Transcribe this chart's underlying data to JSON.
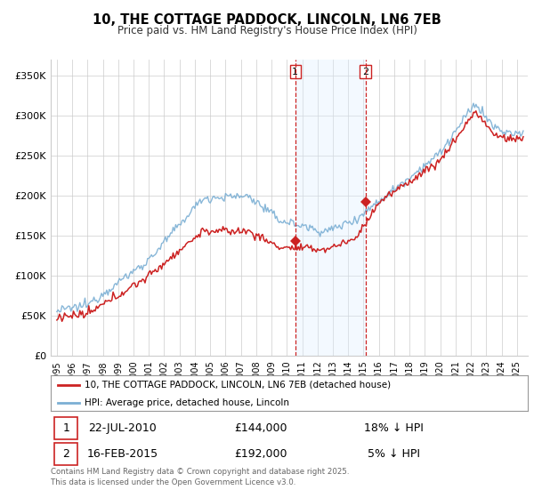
{
  "title": "10, THE COTTAGE PADDOCK, LINCOLN, LN6 7EB",
  "subtitle": "Price paid vs. HM Land Registry's House Price Index (HPI)",
  "ylim": [
    0,
    370000
  ],
  "yticks": [
    0,
    50000,
    100000,
    150000,
    200000,
    250000,
    300000,
    350000
  ],
  "ytick_labels": [
    "£0",
    "£50K",
    "£100K",
    "£150K",
    "£200K",
    "£250K",
    "£300K",
    "£350K"
  ],
  "xlim_start": 1994.6,
  "xlim_end": 2025.7,
  "hpi_color": "#7bafd4",
  "price_color": "#cc2222",
  "marker1_date": 2010.55,
  "marker2_date": 2015.12,
  "marker1_price": 144000,
  "marker2_price": 192000,
  "vline_color": "#cc2222",
  "shade_color": "#ddeeff",
  "legend_label1": "10, THE COTTAGE PADDOCK, LINCOLN, LN6 7EB (detached house)",
  "legend_label2": "HPI: Average price, detached house, Lincoln",
  "annotation1_date": "22-JUL-2010",
  "annotation1_price": "£144,000",
  "annotation1_hpi": "18% ↓ HPI",
  "annotation2_date": "16-FEB-2015",
  "annotation2_price": "£192,000",
  "annotation2_hpi": "5% ↓ HPI",
  "footer": "Contains HM Land Registry data © Crown copyright and database right 2025.\nThis data is licensed under the Open Government Licence v3.0.",
  "background_color": "#ffffff",
  "grid_color": "#cccccc"
}
